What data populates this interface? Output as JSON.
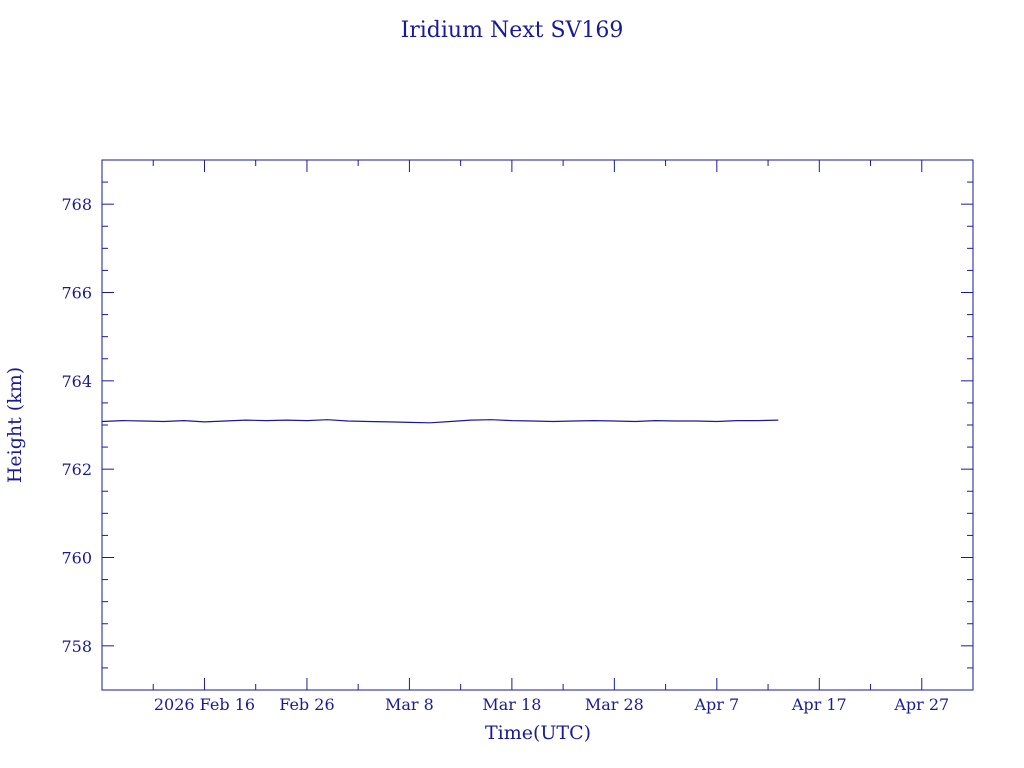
{
  "chart_data": {
    "type": "line",
    "title": "Iridium Next SV169",
    "xlabel": "Time(UTC)",
    "ylabel": "Height (km)",
    "x_unit": "date",
    "xlim": [
      "2026-02-06",
      "2026-05-02"
    ],
    "ylim": [
      757,
      769
    ],
    "x_ticks": [
      {
        "date": "2026-02-16",
        "label": "2026 Feb 16"
      },
      {
        "date": "2026-02-26",
        "label": "Feb 26"
      },
      {
        "date": "2026-03-08",
        "label": "Mar  8"
      },
      {
        "date": "2026-03-18",
        "label": "Mar 18"
      },
      {
        "date": "2026-03-28",
        "label": "Mar 28"
      },
      {
        "date": "2026-04-07",
        "label": "Apr  7"
      },
      {
        "date": "2026-04-17",
        "label": "Apr 17"
      },
      {
        "date": "2026-04-27",
        "label": "Apr 27"
      }
    ],
    "y_ticks": [
      758,
      760,
      762,
      764,
      766,
      768
    ],
    "grid": false,
    "color": "#1a1a99",
    "series": [
      {
        "x": [
          "2026-02-06",
          "2026-02-08",
          "2026-02-10",
          "2026-02-12",
          "2026-02-14",
          "2026-02-16",
          "2026-02-18",
          "2026-02-20",
          "2026-02-22",
          "2026-02-24",
          "2026-02-26",
          "2026-02-28",
          "2026-03-02",
          "2026-03-04",
          "2026-03-06",
          "2026-03-08",
          "2026-03-10",
          "2026-03-12",
          "2026-03-14",
          "2026-03-16",
          "2026-03-18",
          "2026-03-20",
          "2026-03-22",
          "2026-03-24",
          "2026-03-26",
          "2026-03-28",
          "2026-03-30",
          "2026-04-01",
          "2026-04-03",
          "2026-04-05",
          "2026-04-07",
          "2026-04-09",
          "2026-04-11",
          "2026-04-13"
        ],
        "y": [
          763.08,
          763.1,
          763.09,
          763.08,
          763.1,
          763.07,
          763.09,
          763.11,
          763.1,
          763.11,
          763.1,
          763.12,
          763.09,
          763.08,
          763.07,
          763.06,
          763.05,
          763.08,
          763.11,
          763.12,
          763.1,
          763.09,
          763.08,
          763.09,
          763.1,
          763.09,
          763.08,
          763.1,
          763.09,
          763.09,
          763.08,
          763.1,
          763.1,
          763.11
        ]
      }
    ]
  }
}
